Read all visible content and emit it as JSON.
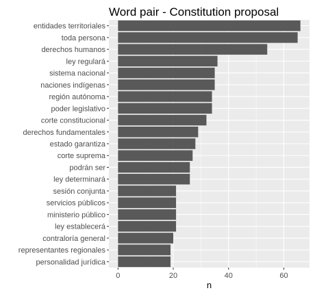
{
  "chart_data": {
    "type": "bar",
    "orientation": "horizontal",
    "title": "Word pair - Constitution proposal",
    "xlabel": "n",
    "ylabel": "",
    "xlim": [
      -3.3,
      69.3
    ],
    "xticks": [
      "0",
      "20",
      "40",
      "60"
    ],
    "grid": true,
    "categories": [
      "entidades territoriales",
      "toda persona",
      "derechos humanos",
      "ley regulará",
      "sistema nacional",
      "naciones indígenas",
      "región autónoma",
      "poder legislativo",
      "corte constitucional",
      "derechos fundamentales",
      "estado garantiza",
      "corte suprema",
      "podrán ser",
      "ley determinará",
      "sesión conjunta",
      "servicios públicos",
      "ministerio público",
      "ley establecerá",
      "contraloría general",
      "representantes regionales",
      "personalidad jurídica"
    ],
    "values": [
      66,
      65,
      54,
      36,
      35,
      35,
      34,
      34,
      32,
      29,
      28,
      27,
      26,
      26,
      21,
      21,
      21,
      21,
      20,
      19,
      19
    ],
    "colors": {
      "bar": "#595959",
      "panel": "#ebebeb",
      "grid_major": "#ffffff",
      "text": "#4d4d4d"
    }
  }
}
